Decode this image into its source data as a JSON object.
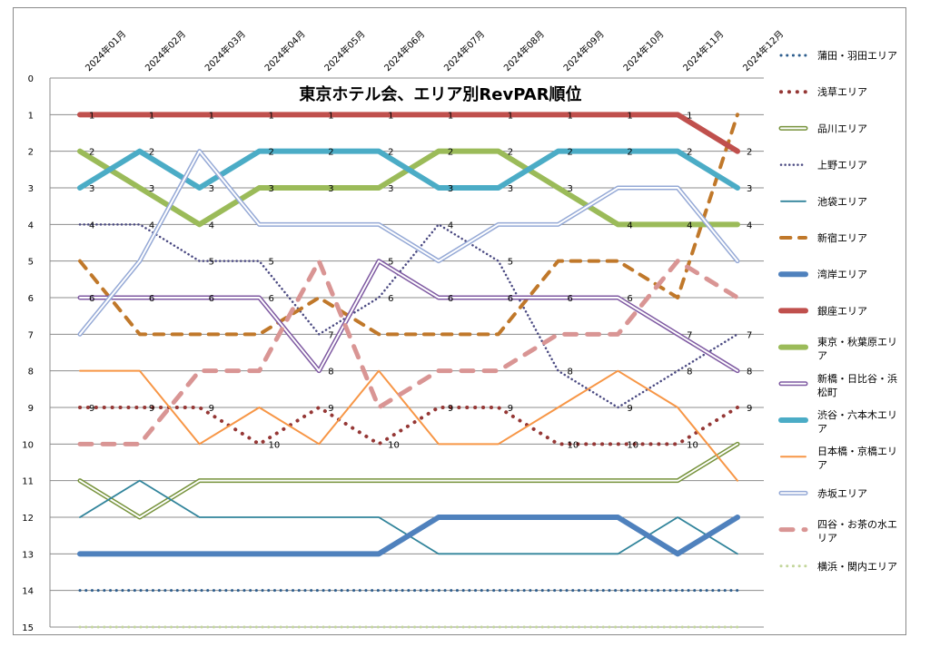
{
  "chart_data": {
    "type": "line",
    "title": "東京ホテル会、エリア別RevPAR順位",
    "xlabel": "",
    "ylabel": "",
    "ylim": [
      0,
      15
    ],
    "y_inverted": true,
    "y_ticks": [
      "0",
      "1",
      "2",
      "3",
      "4",
      "5",
      "6",
      "7",
      "8",
      "9",
      "10",
      "11",
      "12",
      "13",
      "14",
      "15"
    ],
    "categories": [
      "2024年01月",
      "2024年02月",
      "2024年03月",
      "2024年04月",
      "2024年05月",
      "2024年06月",
      "2024年07月",
      "2024年08月",
      "2024年09月",
      "2024年10月",
      "2024年11月",
      "2024年12月"
    ],
    "grid": true,
    "legend_position": "right",
    "series": [
      {
        "name": "蒲田・羽田エリア",
        "values": [
          14,
          14,
          14,
          14,
          14,
          14,
          14,
          14,
          14,
          14,
          14,
          14
        ],
        "color": "#2e5e8e",
        "style": "dotted-round",
        "width": 3,
        "labels": false
      },
      {
        "name": "浅草エリア",
        "values": [
          9,
          9,
          9,
          10,
          9,
          10,
          9,
          9,
          10,
          10,
          10,
          9
        ],
        "color": "#953735",
        "style": "dotted-round",
        "width": 4,
        "labels": true
      },
      {
        "name": "品川エリア",
        "values": [
          11,
          12,
          11,
          11,
          11,
          11,
          11,
          11,
          11,
          11,
          11,
          10
        ],
        "color": "#77933c",
        "style": "double",
        "width": 5,
        "labels": false
      },
      {
        "name": "上野エリア",
        "values": [
          4,
          4,
          5,
          5,
          7,
          6,
          4,
          5,
          8,
          9,
          8,
          7
        ],
        "color": "#4b4a82",
        "style": "dotted",
        "width": 2.5,
        "labels": true
      },
      {
        "name": "池袋エリア",
        "values": [
          12,
          11,
          12,
          12,
          12,
          12,
          13,
          13,
          13,
          13,
          12,
          13
        ],
        "color": "#31849b",
        "style": "solid",
        "width": 1.8,
        "labels": false
      },
      {
        "name": "新宿エリア",
        "values": [
          5,
          7,
          7,
          7,
          6,
          7,
          7,
          7,
          5,
          5,
          6,
          1
        ],
        "color": "#c0782a",
        "style": "dashed",
        "width": 4,
        "labels": false
      },
      {
        "name": "湾岸エリア",
        "values": [
          13,
          13,
          13,
          13,
          13,
          13,
          12,
          12,
          12,
          12,
          13,
          12
        ],
        "color": "#4f81bd",
        "style": "solid",
        "width": 6,
        "labels": false
      },
      {
        "name": "銀座エリア",
        "values": [
          1,
          1,
          1,
          1,
          1,
          1,
          1,
          1,
          1,
          1,
          1,
          2
        ],
        "color": "#c0504d",
        "style": "solid",
        "width": 6,
        "labels": true
      },
      {
        "name": "東京・秋葉原エリア",
        "values": [
          2,
          3,
          4,
          3,
          3,
          3,
          2,
          2,
          3,
          4,
          4,
          4
        ],
        "color": "#9bbb59",
        "style": "solid",
        "width": 6,
        "labels": true
      },
      {
        "name": "新橋・日比谷・浜松町",
        "values": [
          6,
          6,
          6,
          6,
          8,
          5,
          6,
          6,
          6,
          6,
          7,
          8
        ],
        "color": "#7f5aa2",
        "style": "double",
        "width": 5,
        "labels": true
      },
      {
        "name": "渋谷・六本木エリア",
        "values": [
          3,
          2,
          3,
          2,
          2,
          2,
          3,
          3,
          2,
          2,
          2,
          3
        ],
        "color": "#4bacc6",
        "style": "solid",
        "width": 6,
        "labels": true
      },
      {
        "name": "日本橋・京橋エリア",
        "values": [
          8,
          8,
          10,
          9,
          10,
          8,
          10,
          10,
          9,
          8,
          9,
          11
        ],
        "color": "#f79646",
        "style": "solid",
        "width": 2,
        "labels": false
      },
      {
        "name": "赤坂エリア",
        "values": [
          7,
          5,
          2,
          4,
          4,
          4,
          5,
          4,
          4,
          3,
          3,
          5
        ],
        "color": "#95a9d6",
        "style": "double",
        "width": 5,
        "labels": false
      },
      {
        "name": "四谷・お茶の水エリア",
        "values": [
          10,
          10,
          8,
          8,
          5,
          9,
          8,
          8,
          7,
          7,
          5,
          6
        ],
        "color": "#d99594",
        "style": "dashed",
        "width": 5,
        "labels": false
      },
      {
        "name": "横浜・関内エリア",
        "values": [
          15,
          15,
          15,
          15,
          15,
          15,
          15,
          15,
          15,
          15,
          15,
          15
        ],
        "color": "#c3d69b",
        "style": "dotted-round",
        "width": 3,
        "labels": false
      }
    ]
  }
}
